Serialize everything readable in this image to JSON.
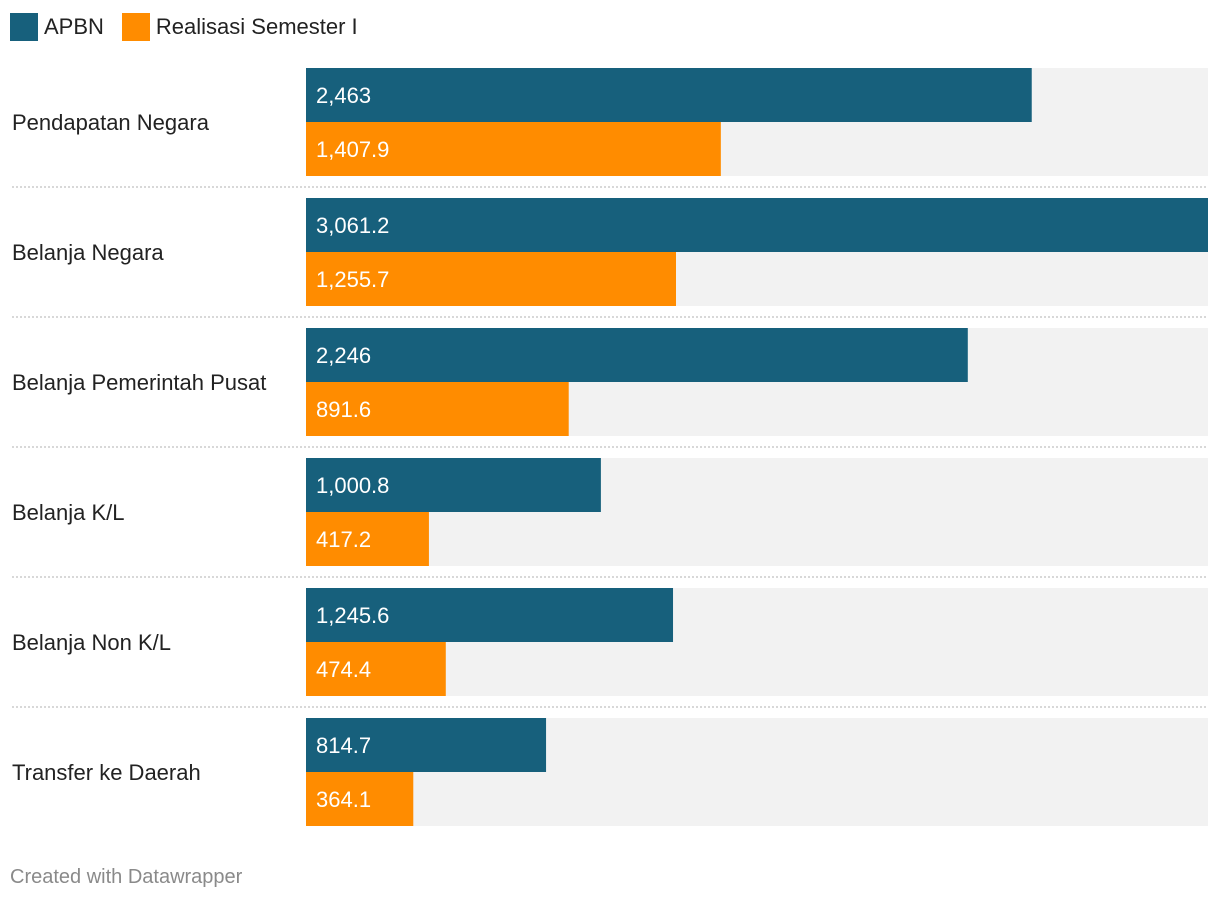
{
  "legend": [
    {
      "label": "APBN",
      "color": "#17607c"
    },
    {
      "label": "Realisasi Semester I",
      "color": "#ff8c00"
    }
  ],
  "footer": {
    "text": "Created with Datawrapper"
  },
  "colors": {
    "track": "#f2f2f2",
    "divider": "#cccccc",
    "label_text": "#ffffff"
  },
  "chart_data": {
    "type": "bar",
    "orientation": "horizontal",
    "grid": false,
    "legend_position": "top-left",
    "categories": [
      "Pendapatan Negara",
      "Belanja Negara",
      "Belanja Pemerintah Pusat",
      "Belanja K/L",
      "Belanja Non K/L",
      "Transfer ke Daerah"
    ],
    "series": [
      {
        "name": "APBN",
        "color": "#17607c",
        "values": [
          2463,
          3061.2,
          2246,
          1000.8,
          1245.6,
          814.7
        ],
        "labels": [
          "2,463",
          "3,061.2",
          "2,246",
          "1,000.8",
          "1,245.6",
          "814.7"
        ]
      },
      {
        "name": "Realisasi Semester I",
        "color": "#ff8c00",
        "values": [
          1407.9,
          1255.7,
          891.6,
          417.2,
          474.4,
          364.1
        ],
        "labels": [
          "1,407.9",
          "1,255.7",
          "891.6",
          "417.2",
          "474.4",
          "364.1"
        ]
      }
    ],
    "xlim": [
      0,
      3061.2
    ]
  }
}
